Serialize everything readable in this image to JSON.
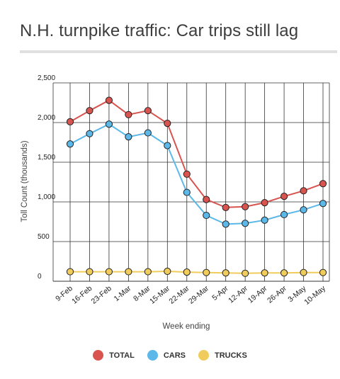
{
  "title": "N.H. turnpike traffic: Car trips still lag",
  "colors": {
    "total": "#d9534f",
    "cars": "#5bb8e8",
    "trucks": "#f0cc5c",
    "grid": "#333333"
  },
  "chart_data": {
    "type": "line",
    "title": "N.H. turnpike traffic: Car trips still lag",
    "xlabel": "Week ending",
    "ylabel": "Toll Count (thousands)",
    "ylim": [
      0,
      2500
    ],
    "yticks": [
      "0",
      "500",
      "1,000",
      "1,500",
      "2,000",
      "2,500"
    ],
    "grid": true,
    "legend_position": "bottom",
    "categories": [
      "9-Feb",
      "16-Feb",
      "23-Feb",
      "1-Mar",
      "8-Mar",
      "15-Mar",
      "22-Mar",
      "29-Mar",
      "5-Apr",
      "12-Apr",
      "19-Apr",
      "26-Apr",
      "3-May",
      "10-May"
    ],
    "series": [
      {
        "name": "TOTAL",
        "key": "total",
        "values": [
          2010,
          2150,
          2280,
          2100,
          2150,
          1990,
          1350,
          1030,
          930,
          940,
          990,
          1070,
          1140,
          1230
        ]
      },
      {
        "name": "CARS",
        "key": "cars",
        "values": [
          1730,
          1860,
          1980,
          1820,
          1870,
          1710,
          1120,
          830,
          720,
          730,
          770,
          840,
          900,
          980
        ]
      },
      {
        "name": "TRUCKS",
        "key": "trucks",
        "values": [
          120,
          120,
          120,
          120,
          120,
          125,
          115,
          110,
          105,
          100,
          105,
          105,
          110,
          110
        ]
      }
    ]
  }
}
